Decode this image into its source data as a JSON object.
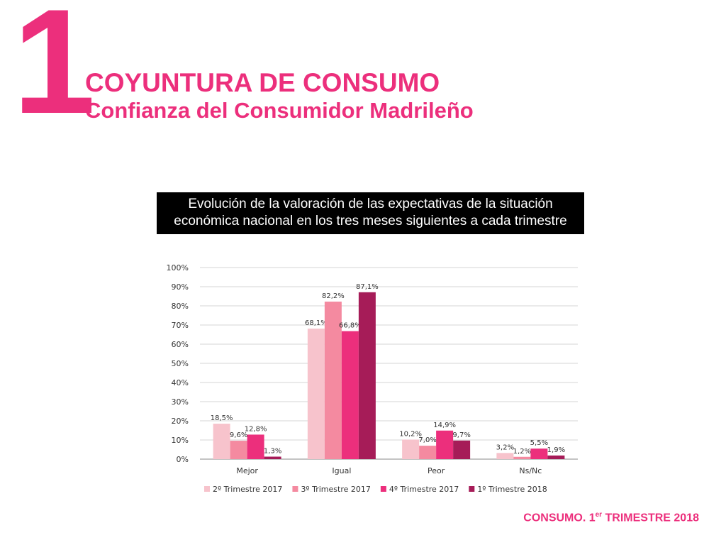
{
  "header": {
    "number": "1",
    "title": "COYUNTURA DE CONSUMO",
    "subtitle": "Confianza del Consumidor Madrileño"
  },
  "chart_heading": {
    "line1": "Evolución de la valoración de las expectativas de la situación",
    "line2": "económica nacional en los tres meses siguientes a cada trimestre"
  },
  "footer": {
    "prefix": "CONSUMO. 1",
    "superscript": "er",
    "suffix": " TRIMESTRE 2018"
  },
  "chart_data": {
    "type": "bar",
    "title": "",
    "xlabel": "",
    "ylabel": "",
    "categories": [
      "Mejor",
      "Igual",
      "Peor",
      "Ns/Nc"
    ],
    "ylim": [
      0,
      100
    ],
    "yticks": [
      "0%",
      "10%",
      "20%",
      "30%",
      "40%",
      "50%",
      "60%",
      "70%",
      "80%",
      "90%",
      "100%"
    ],
    "grid": true,
    "legend_position": "bottom",
    "series": [
      {
        "name": "2º Trimestre 2017",
        "color": "#f7c3cc",
        "values": [
          18.5,
          68.1,
          10.2,
          3.2
        ],
        "labels": [
          "18,5%",
          "68,1%",
          "10,2%",
          "3,2%"
        ]
      },
      {
        "name": "3º Trimestre 2017",
        "color": "#f48aa0",
        "values": [
          9.6,
          82.2,
          7.0,
          1.2
        ],
        "labels": [
          "9,6%",
          "82,2%",
          "7,0%",
          "1,2%"
        ]
      },
      {
        "name": "4º Trimestre 2017",
        "color": "#ec2f7c",
        "values": [
          12.8,
          66.8,
          14.9,
          5.5
        ],
        "labels": [
          "12,8%",
          "66,8%",
          "14,9%",
          "5,5%"
        ]
      },
      {
        "name": "1º Trimestre 2018",
        "color": "#a61c58",
        "values": [
          1.3,
          87.1,
          9.7,
          1.9
        ],
        "labels": [
          "1,3%",
          "87,1%",
          "9,7%",
          "1,9%"
        ]
      }
    ]
  }
}
